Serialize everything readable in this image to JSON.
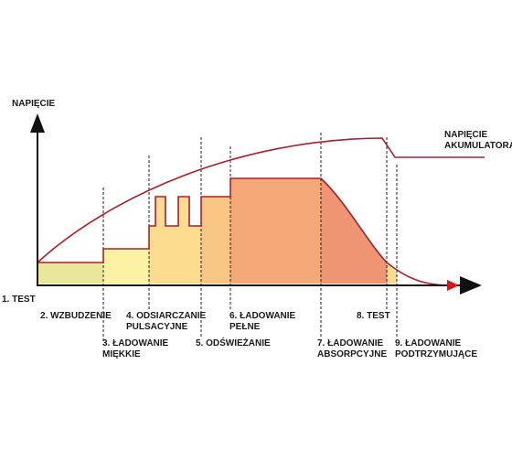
{
  "diagram": {
    "y_axis_label": "NAPIĘCIE",
    "curve_label": [
      "NAPIĘCIE",
      "AKUMULATORA"
    ],
    "stages": [
      {
        "id": "1",
        "lines": [
          "1. TEST"
        ]
      },
      {
        "id": "2",
        "lines": [
          "2. WZBUDZENIE"
        ]
      },
      {
        "id": "3",
        "lines": [
          "3. ŁADOWANIE",
          "MIĘKKIE"
        ]
      },
      {
        "id": "4",
        "lines": [
          "4. ODSIARCZANIE",
          "PULSACYJNE"
        ]
      },
      {
        "id": "5",
        "lines": [
          "5. ODŚWIEŻANIE"
        ]
      },
      {
        "id": "6",
        "lines": [
          "6. ŁADOWANIE",
          "PEŁNE"
        ]
      },
      {
        "id": "7",
        "lines": [
          "7. ŁADOWANIE",
          "ABSORPCYJNE"
        ]
      },
      {
        "id": "8",
        "lines": [
          "8. TEST"
        ]
      },
      {
        "id": "9",
        "lines": [
          "9. ŁADOWANIE",
          "PODTRZYMUJĄCE"
        ]
      }
    ]
  },
  "colors": {
    "curve": "#a8202a",
    "axis": "#111111",
    "arrow_red": "#e0101a",
    "stage_2": "#e9e89a",
    "stage_3": "#faf2a2",
    "stage_4": "#fbdc8e",
    "stage_5": "#f8c582",
    "stage_6": "#f4a877",
    "stage_7": "#ef9574",
    "stage_8": "#fadc8c"
  }
}
